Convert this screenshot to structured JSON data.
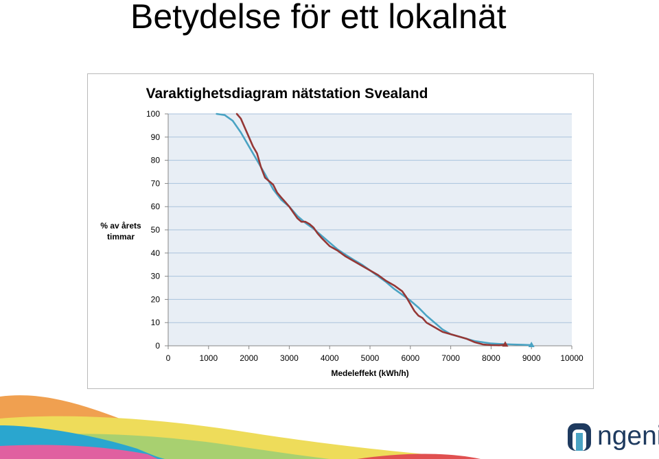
{
  "slide": {
    "title": "Betydelse för ett lokalnät"
  },
  "logo": {
    "text": "ngenic",
    "color": "#1e3a5f",
    "icon": "ngenic-n-icon"
  },
  "chart_data": {
    "type": "line",
    "title": "Varaktighetsdiagram nätstation Svealand",
    "xlabel": "Medeleffekt (kWh/h)",
    "ylabel": [
      "% av årets",
      "timmar"
    ],
    "xlim": [
      0,
      10000
    ],
    "ylim": [
      0,
      100
    ],
    "x_ticks": [
      0,
      1000,
      2000,
      3000,
      4000,
      5000,
      6000,
      7000,
      8000,
      9000,
      10000
    ],
    "y_ticks": [
      0,
      10,
      20,
      30,
      40,
      50,
      60,
      70,
      80,
      90,
      100
    ],
    "grid": true,
    "legend": "none",
    "plot_background": "#e8eef5",
    "series": [
      {
        "color": "#4aa3c3",
        "end_marker": "triangle",
        "points": [
          [
            1200,
            100
          ],
          [
            1400,
            99.5
          ],
          [
            1600,
            97
          ],
          [
            1800,
            92
          ],
          [
            2000,
            86
          ],
          [
            2200,
            80
          ],
          [
            2400,
            74
          ],
          [
            2600,
            67.5
          ],
          [
            2800,
            63
          ],
          [
            3000,
            60
          ],
          [
            3200,
            56
          ],
          [
            3400,
            53
          ],
          [
            3600,
            50.5
          ],
          [
            3800,
            47.5
          ],
          [
            4000,
            44.5
          ],
          [
            4200,
            41.5
          ],
          [
            4400,
            39.2
          ],
          [
            4600,
            37
          ],
          [
            4800,
            35
          ],
          [
            5000,
            32.5
          ],
          [
            5200,
            30
          ],
          [
            5400,
            27.5
          ],
          [
            5600,
            24.5
          ],
          [
            5800,
            22
          ],
          [
            6000,
            19.5
          ],
          [
            6200,
            16.5
          ],
          [
            6400,
            13
          ],
          [
            6600,
            10
          ],
          [
            6800,
            7
          ],
          [
            7000,
            5
          ],
          [
            7200,
            4
          ],
          [
            7400,
            3
          ],
          [
            7600,
            2
          ],
          [
            7800,
            1.5
          ],
          [
            8000,
            1
          ],
          [
            8200,
            0.8
          ],
          [
            8500,
            0.6
          ],
          [
            8800,
            0.4
          ],
          [
            9000,
            0.3
          ]
        ]
      },
      {
        "color": "#953735",
        "end_marker": "triangle",
        "points": [
          [
            1700,
            100
          ],
          [
            1800,
            98
          ],
          [
            1900,
            94
          ],
          [
            2000,
            90
          ],
          [
            2100,
            86
          ],
          [
            2200,
            83
          ],
          [
            2300,
            77
          ],
          [
            2400,
            72.5
          ],
          [
            2500,
            71
          ],
          [
            2600,
            69.5
          ],
          [
            2700,
            66
          ],
          [
            2800,
            64
          ],
          [
            2900,
            62
          ],
          [
            3000,
            60
          ],
          [
            3100,
            57.5
          ],
          [
            3200,
            55
          ],
          [
            3300,
            53.5
          ],
          [
            3400,
            53.5
          ],
          [
            3500,
            52.5
          ],
          [
            3600,
            51
          ],
          [
            3700,
            48.5
          ],
          [
            3800,
            46.5
          ],
          [
            4000,
            43
          ],
          [
            4200,
            41
          ],
          [
            4400,
            38.5
          ],
          [
            4600,
            36.5
          ],
          [
            4800,
            34.5
          ],
          [
            5000,
            32.5
          ],
          [
            5200,
            30.5
          ],
          [
            5400,
            28
          ],
          [
            5600,
            26
          ],
          [
            5800,
            23.5
          ],
          [
            5900,
            21
          ],
          [
            6000,
            18
          ],
          [
            6100,
            15
          ],
          [
            6200,
            13
          ],
          [
            6300,
            12
          ],
          [
            6400,
            10
          ],
          [
            6600,
            8
          ],
          [
            6800,
            6
          ],
          [
            7000,
            5
          ],
          [
            7200,
            4
          ],
          [
            7400,
            3
          ],
          [
            7600,
            1.5
          ],
          [
            7800,
            0.6
          ],
          [
            8000,
            0.3
          ],
          [
            8200,
            0.2
          ],
          [
            8350,
            0.5
          ]
        ]
      }
    ]
  }
}
